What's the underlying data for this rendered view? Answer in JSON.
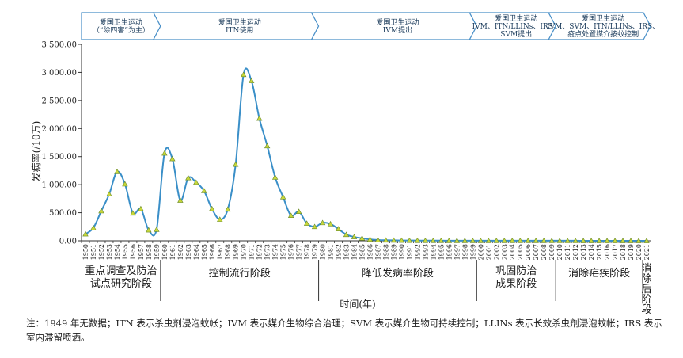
{
  "colors": {
    "arrow_fill": "#ffffff",
    "arrow_stroke": "#4a90c8",
    "line": "#3a8fc8",
    "marker_fill": "#c8d83a",
    "marker_stroke": "#6a8a2a",
    "axis": "#333333"
  },
  "phases": [
    {
      "lines": [
        "爱国卫生运动",
        "（“除四害”为主）"
      ],
      "from": 1950,
      "to": 1959
    },
    {
      "lines": [
        "爱国卫生运动",
        "ITN使用"
      ],
      "from": 1960,
      "to": 1979
    },
    {
      "lines": [
        "爱国卫生运动",
        "IVM提出"
      ],
      "from": 1980,
      "to": 1999
    },
    {
      "lines": [
        "爱国卫生运动",
        "IVM、ITN/LLINs、IRS、",
        "SVM提出"
      ],
      "from": 2000,
      "to": 2009
    },
    {
      "lines": [
        "爱国卫生运动",
        "IVM、SVM、ITN/LLINs、IRS、",
        "疫点处置媒介按蚊控制"
      ],
      "from": 2010,
      "to": 2021
    }
  ],
  "stages": [
    {
      "lines": [
        "重点调查及防治",
        "试点研究阶段"
      ],
      "from": 1950,
      "to": 1959
    },
    {
      "lines": [
        "控制流行阶段"
      ],
      "from": 1960,
      "to": 1979
    },
    {
      "lines": [
        "降低发病率阶段"
      ],
      "from": 1980,
      "to": 1999
    },
    {
      "lines": [
        "巩固防治",
        "成果阶段"
      ],
      "from": 2000,
      "to": 2009
    },
    {
      "lines": [
        "消除疟疾阶段"
      ],
      "from": 2010,
      "to": 2020
    },
    {
      "lines": [
        "消",
        "除",
        "后",
        "阶",
        "段"
      ],
      "from": 2021,
      "to": 2021
    }
  ],
  "chart_data": {
    "type": "line",
    "xlabel": "时间(年)",
    "ylabel": "发病率(/10万)",
    "ylim": [
      0,
      3500
    ],
    "yticks": [
      0,
      500,
      1000,
      1500,
      2000,
      2500,
      3000,
      3500
    ],
    "ytick_labels": [
      "0.00",
      "500.00",
      "1 000.00",
      "1 500.00",
      "2 000.00",
      "2 500.00",
      "3 000.00",
      "3 500.00"
    ],
    "x": [
      1950,
      1951,
      1952,
      1953,
      1954,
      1955,
      1956,
      1957,
      1958,
      1959,
      1960,
      1961,
      1962,
      1963,
      1964,
      1965,
      1966,
      1967,
      1968,
      1969,
      1970,
      1971,
      1972,
      1973,
      1974,
      1975,
      1976,
      1977,
      1978,
      1979,
      1980,
      1981,
      1982,
      1983,
      1984,
      1985,
      1986,
      1987,
      1988,
      1989,
      1990,
      1991,
      1992,
      1993,
      1994,
      1995,
      1996,
      1997,
      1998,
      1999,
      2000,
      2001,
      2002,
      2003,
      2004,
      2005,
      2006,
      2007,
      2008,
      2009,
      2010,
      2011,
      2012,
      2013,
      2014,
      2015,
      2016,
      2017,
      2018,
      2019,
      2020,
      2021
    ],
    "series": [
      {
        "values": [
          120,
          230,
          530,
          830,
          1230,
          1010,
          490,
          570,
          190,
          200,
          1560,
          1460,
          720,
          1120,
          1040,
          890,
          570,
          380,
          560,
          1360,
          2960,
          2850,
          2180,
          1690,
          1130,
          780,
          450,
          520,
          310,
          250,
          320,
          300,
          210,
          110,
          70,
          45,
          25,
          15,
          10,
          8,
          6,
          5,
          4,
          3,
          3,
          3,
          2,
          2,
          2,
          2,
          2,
          2,
          2,
          2,
          2,
          2,
          2,
          2,
          2,
          1,
          1,
          1,
          1,
          0,
          0,
          0,
          0,
          0,
          0,
          0,
          0,
          0
        ]
      }
    ]
  },
  "note": {
    "text": "注：1949 年无数据；ITN 表示杀虫剂浸泡蚊帐；IVM 表示媒介生物综合治理；SVM 表示媒介生物可持续控制；LLINs 表示长效杀虫剂浸泡蚊帐；IRS 表示室内滞留喷洒。"
  }
}
